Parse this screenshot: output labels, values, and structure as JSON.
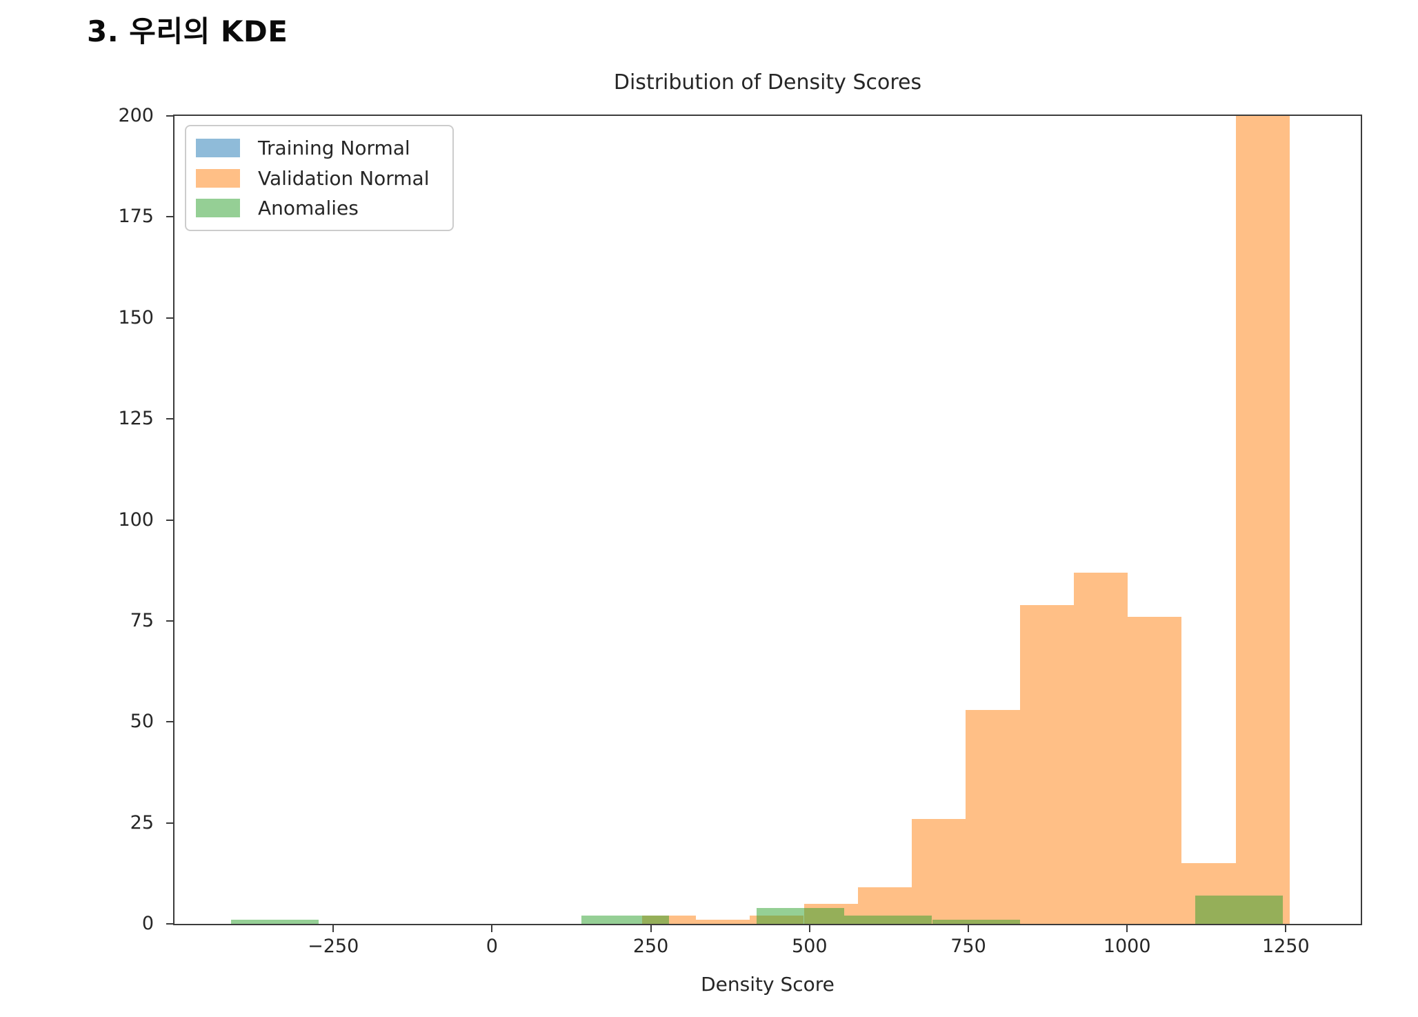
{
  "page": {
    "heading": "3. 우리의 KDE"
  },
  "chart_data": {
    "type": "bar",
    "bar_style": "overlaid-histogram",
    "title": "Distribution of Density Scores",
    "xlabel": "Density Score",
    "ylabel": "",
    "xlim": [
      -500,
      1368
    ],
    "ylim": [
      0,
      200
    ],
    "grid": false,
    "legend_position": "upper left",
    "xticks": {
      "values": [
        -250,
        0,
        250,
        500,
        750,
        1000,
        1250
      ],
      "labels": [
        "−250",
        "0",
        "250",
        "500",
        "750",
        "1000",
        "1250"
      ]
    },
    "yticks": {
      "values": [
        0,
        25,
        50,
        75,
        100,
        125,
        150,
        175,
        200
      ],
      "labels": [
        "0",
        "25",
        "50",
        "75",
        "100",
        "125",
        "150",
        "175",
        "200"
      ]
    },
    "series": [
      {
        "name": "Training Normal",
        "color": "#1f77b4",
        "alpha": 0.5,
        "bin_edges": [],
        "counts": [],
        "note": "legend entry only — no bars visible within the plotted range"
      },
      {
        "name": "Validation Normal",
        "color": "#ff7f0e",
        "alpha": 0.5,
        "bin_edges": [
          236,
          321,
          406,
          491,
          576,
          661,
          746,
          831,
          916,
          1001,
          1086,
          1171,
          1256
        ],
        "counts": [
          2,
          1,
          2,
          5,
          9,
          26,
          53,
          79,
          87,
          76,
          15,
          200
        ],
        "last_bin_clipped_at_top": true
      },
      {
        "name": "Anomalies",
        "color": "#2ca02c",
        "alpha": 0.5,
        "bin_edges": [
          -411,
          -273,
          -135,
          3,
          141,
          279,
          417,
          555,
          693,
          831,
          969,
          1107,
          1245
        ],
        "counts": [
          1,
          0,
          0,
          0,
          2,
          0,
          4,
          2,
          1,
          0,
          0,
          7
        ]
      }
    ]
  }
}
